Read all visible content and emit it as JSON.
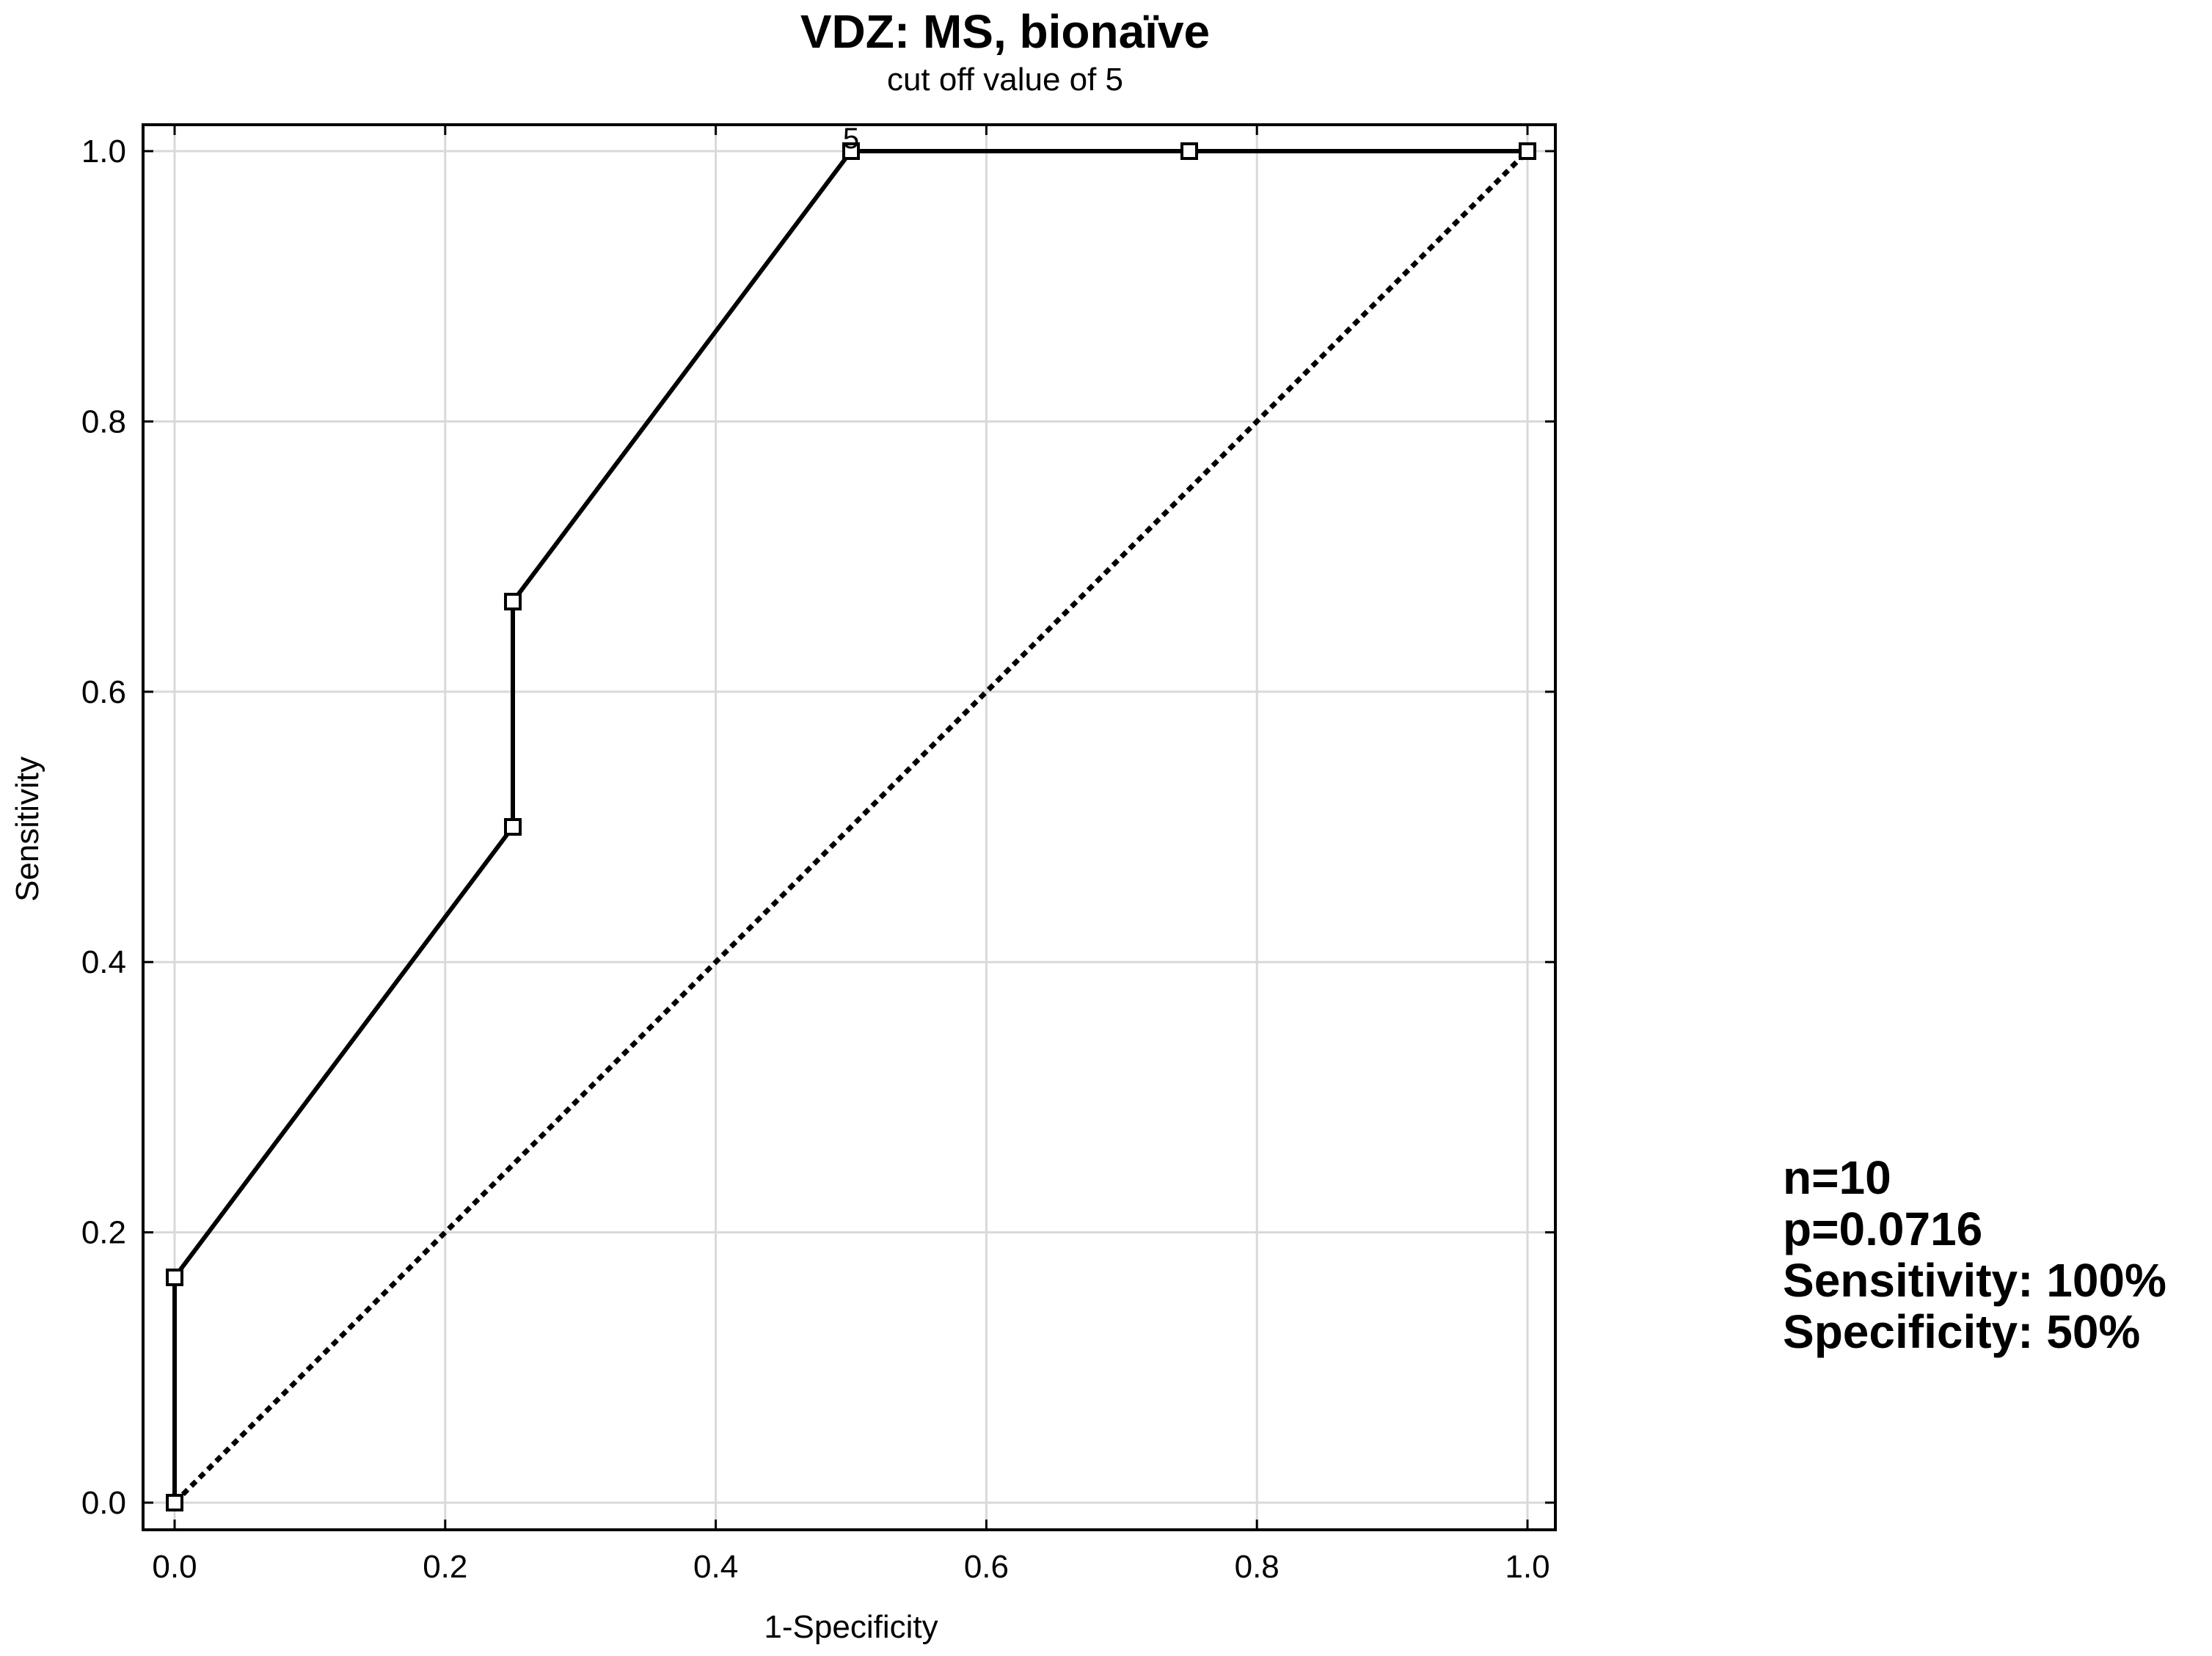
{
  "chart_data": {
    "type": "line",
    "title": "VDZ: MS, bionaïve",
    "subtitle": "cut off value of 5",
    "xlabel": "1-Specificity",
    "ylabel": "Sensitivity",
    "xlim": [
      0,
      1
    ],
    "ylim": [
      0,
      1
    ],
    "xticks": [
      "0.0",
      "0.2",
      "0.4",
      "0.6",
      "0.8",
      "1.0"
    ],
    "yticks": [
      "0.0",
      "0.2",
      "0.4",
      "0.6",
      "0.8",
      "1.0"
    ],
    "xtick_values": [
      0,
      0.2,
      0.4,
      0.6,
      0.8,
      1.0
    ],
    "ytick_values": [
      0,
      0.2,
      0.4,
      0.6,
      0.8,
      1.0
    ],
    "grid": true,
    "series": [
      {
        "style": "solid",
        "markers": true,
        "x": [
          0,
          0,
          0.25,
          0.25,
          0.5,
          0.75,
          1.0
        ],
        "y": [
          0,
          0.1667,
          0.5,
          0.6667,
          1.0,
          1.0,
          1.0
        ]
      },
      {
        "style": "dotted",
        "markers": false,
        "x": [
          0,
          1
        ],
        "y": [
          0,
          1
        ]
      }
    ],
    "annotations": [
      {
        "text": "5",
        "x": 0.5,
        "y": 1.0
      }
    ]
  },
  "stats": {
    "n": "n=10",
    "p": "p=0.0716",
    "sensitivity": "Sensitivity: 100%",
    "specificity": "Specificity: 50%"
  },
  "colors": {
    "line": "#000000",
    "grid": "#d9d9d9",
    "background": "#ffffff"
  }
}
